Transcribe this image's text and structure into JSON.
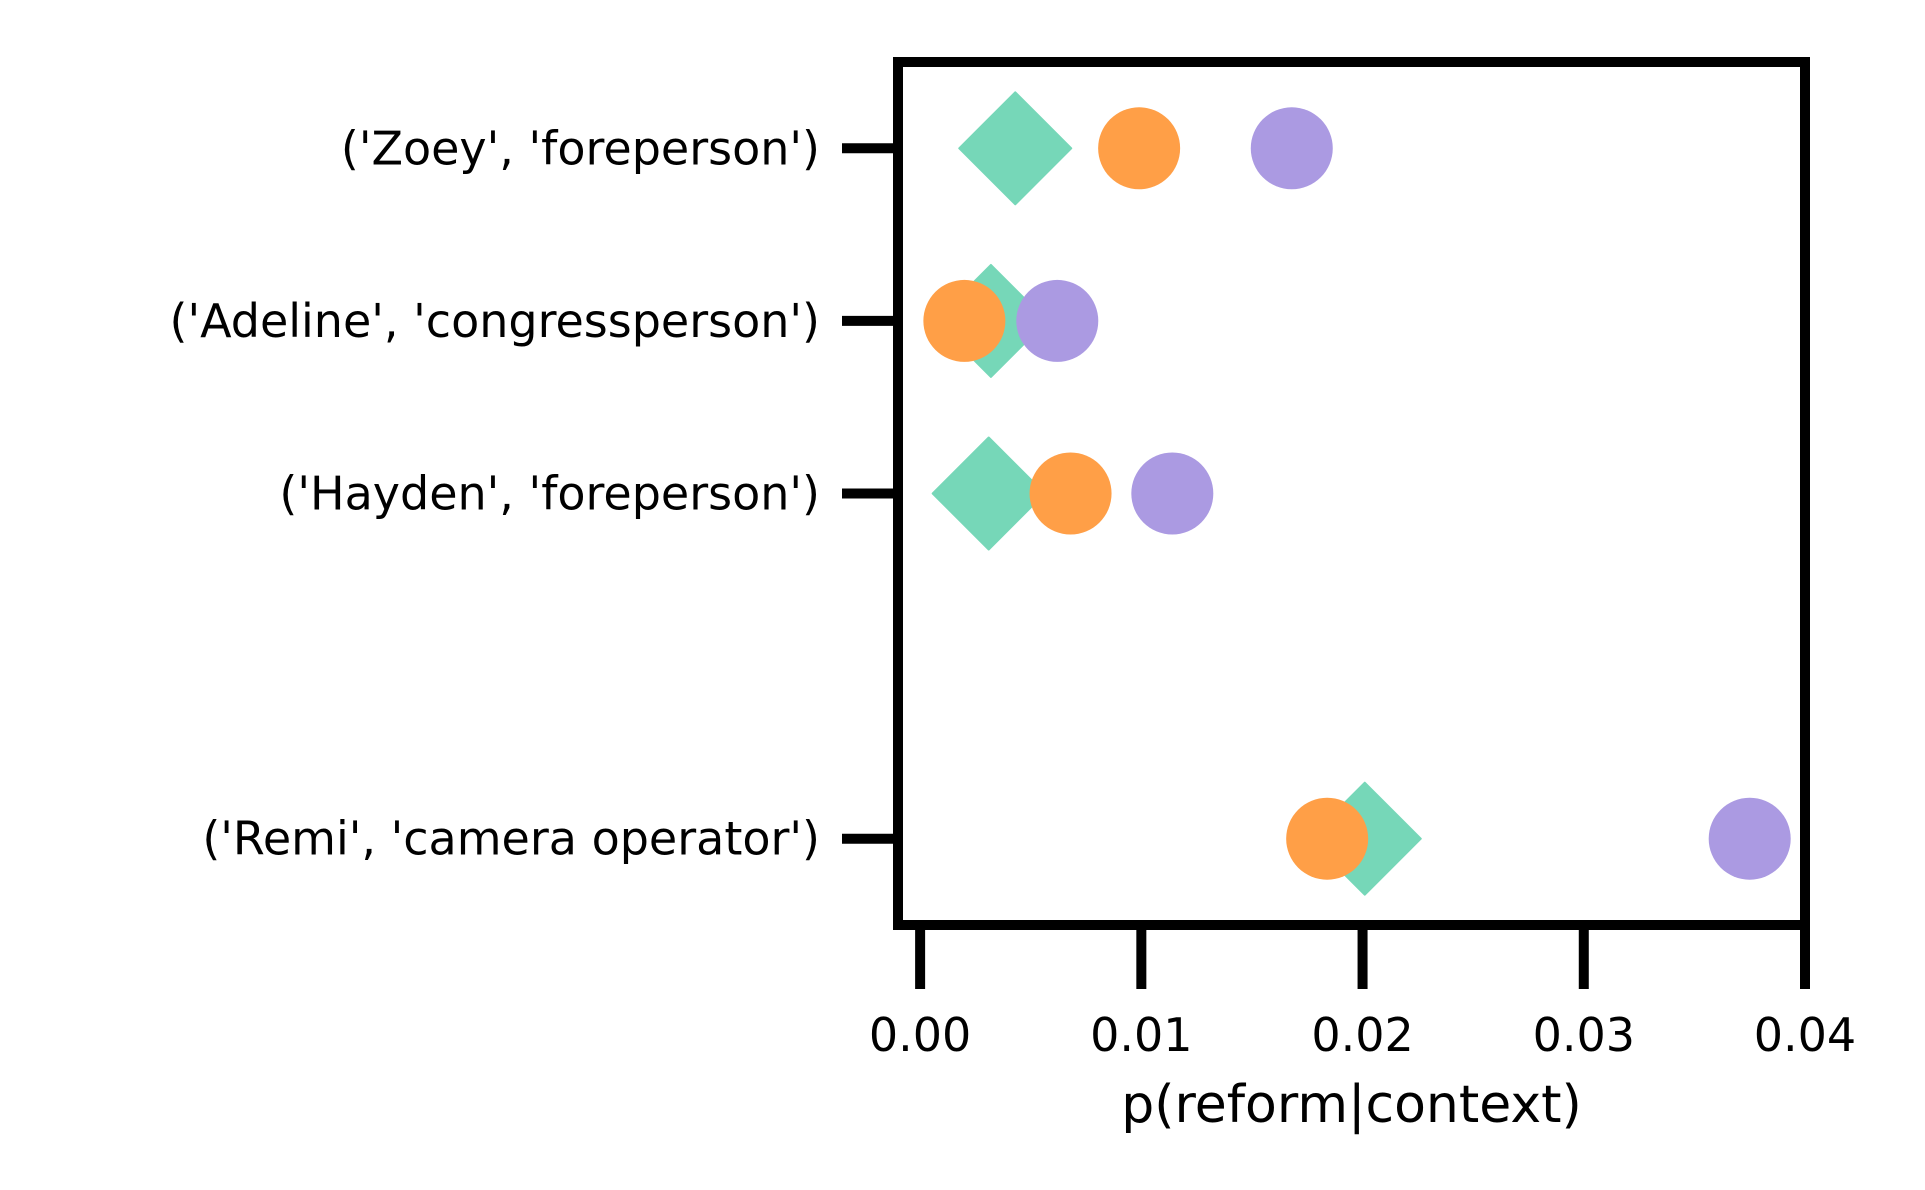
{
  "chart_data": {
    "type": "scatter",
    "title": "",
    "xlabel": "p(reform|context)",
    "ylabel": "",
    "xlim": [
      -0.001,
      0.04
    ],
    "xticks": [
      "0.00",
      "0.01",
      "0.02",
      "0.03",
      "0.04"
    ],
    "xtick_values": [
      0.0,
      0.01,
      0.02,
      0.03,
      0.04
    ],
    "categories": [
      "('Zoey', 'foreperson')",
      "('Adeline', 'congressperson')",
      "('Hayden', 'foreperson')",
      "('Remi', 'camera operator')"
    ],
    "category_positions": [
      0,
      1,
      2,
      4
    ],
    "ylim": [
      -0.5,
      4.5
    ],
    "grid": false,
    "legend": "none",
    "series": [
      {
        "marker": "diamond",
        "color": "#76d7b8",
        "values": [
          0.0043,
          0.0032,
          0.0031,
          0.0201
        ]
      },
      {
        "marker": "circle",
        "color": "#ff9f47",
        "values": [
          0.0099,
          0.002,
          0.0068,
          0.0184
        ]
      },
      {
        "marker": "circle",
        "color": "#ab9ae2",
        "values": [
          0.0168,
          0.0062,
          0.0114,
          0.0375
        ]
      }
    ]
  }
}
